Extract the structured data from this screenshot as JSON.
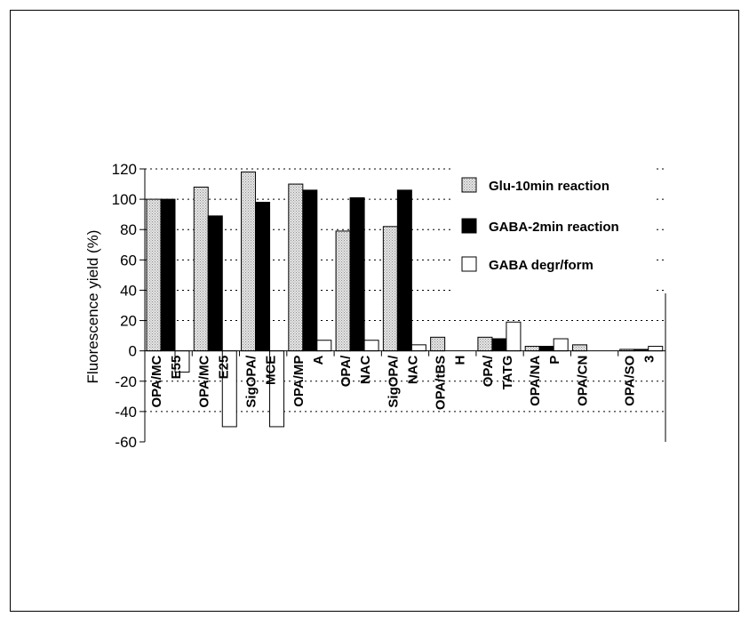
{
  "chart_data": {
    "type": "bar",
    "title": "",
    "xlabel": "",
    "ylabel": "Fluorescence yield  (%)",
    "ylim": [
      -60,
      120
    ],
    "yticks": [
      -60,
      -40,
      -20,
      0,
      20,
      40,
      60,
      80,
      100,
      120
    ],
    "grid": "dashed horizontal",
    "legend_position": "top-right",
    "categories": [
      [
        "OPA/MC",
        "E55"
      ],
      [
        "OPA/MC",
        "E25"
      ],
      [
        "SigOPA/",
        "MCE"
      ],
      [
        "OPA/MP",
        "A"
      ],
      [
        "OPA/",
        "NAC"
      ],
      [
        "SigOPA/",
        "NAC"
      ],
      [
        "OPA/tBS",
        "H"
      ],
      [
        "OPA/",
        "TATG"
      ],
      [
        "OPA/NA",
        "P"
      ],
      [
        "OPA/CN",
        ""
      ],
      [
        "OPA/SO",
        "3"
      ]
    ],
    "series": [
      {
        "name": "Glu-10min reaction",
        "color": "#d4d4d4",
        "pattern": "dotted",
        "values": [
          100,
          108,
          118,
          110,
          79,
          82,
          9,
          9,
          3,
          4,
          1
        ]
      },
      {
        "name": "GABA-2min reaction",
        "color": "#000000",
        "values": [
          100,
          89,
          98,
          106,
          101,
          106,
          0,
          8,
          3,
          0,
          1
        ]
      },
      {
        "name": "GABA degr/form",
        "color": "#ffffff",
        "values": [
          -14,
          -50,
          -50,
          7,
          7,
          4,
          0,
          19,
          8,
          0,
          3
        ]
      }
    ]
  }
}
